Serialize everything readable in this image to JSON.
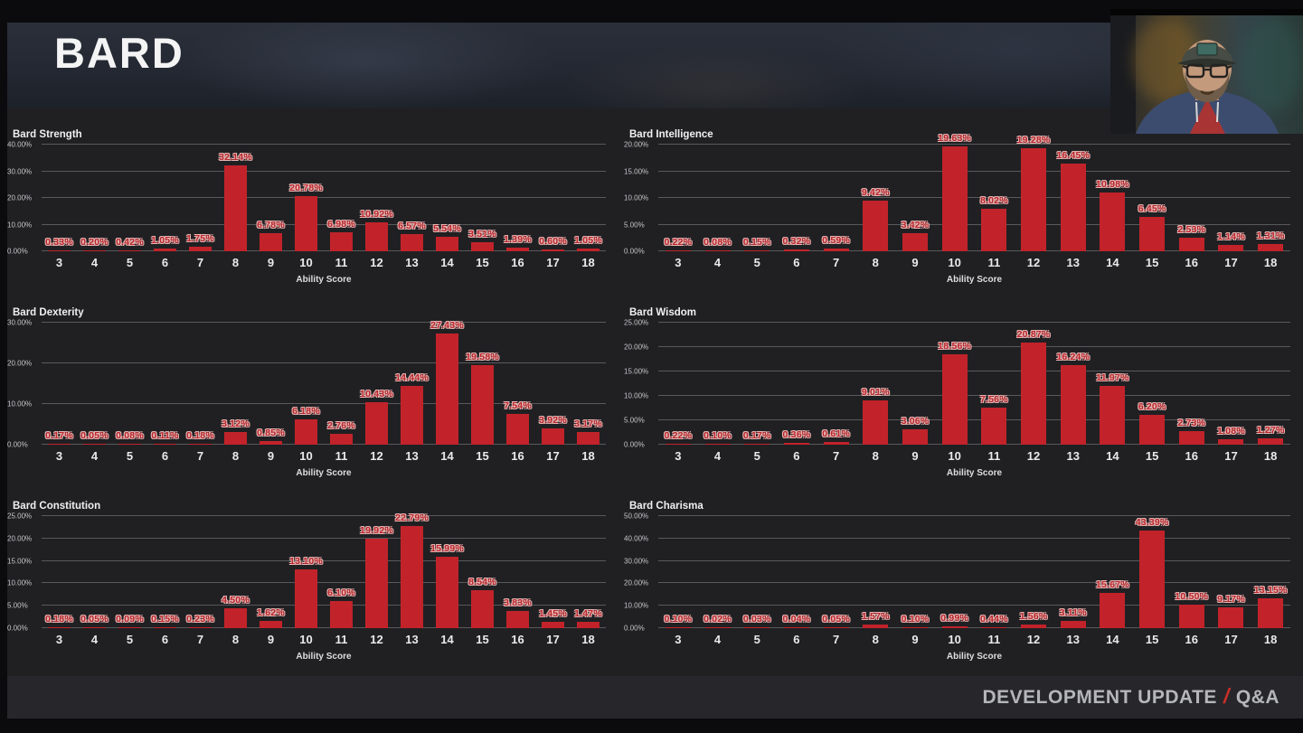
{
  "header": {
    "title": "BARD"
  },
  "footer": {
    "left": "DEVELOPMENT UPDATE",
    "separator": "/",
    "right": "Q&A"
  },
  "webcam": {
    "name": "streamer-webcam-video"
  },
  "colors": {
    "bar": "#c2232a",
    "value_label": "#b8262c",
    "value_label_outline": "#e8b7b5",
    "grid_line": "#59595c",
    "axis_label": "#c6c6c9",
    "tick_label": "#eaeaea",
    "title_text": "#f0f0f0",
    "accent_red": "#cb2e28",
    "footer_text": "#b5b6bc",
    "background": "#202023"
  },
  "chart_data": [
    {
      "type": "bar",
      "title": "Bard Strength",
      "xlabel": "Ability Score",
      "categories": [
        3,
        4,
        5,
        6,
        7,
        8,
        9,
        10,
        11,
        12,
        13,
        14,
        15,
        16,
        17,
        18
      ],
      "values": [
        0.33,
        0.2,
        0.42,
        1.05,
        1.75,
        32.14,
        6.78,
        20.78,
        6.98,
        10.92,
        6.57,
        5.54,
        3.51,
        1.39,
        0.6,
        1.05
      ],
      "ylim": [
        0,
        40
      ],
      "yticks": [
        0,
        10,
        20,
        30,
        40
      ],
      "grid": true,
      "value_label_format": "percent2"
    },
    {
      "type": "bar",
      "title": "Bard Intelligence",
      "xlabel": "Ability Score",
      "categories": [
        3,
        4,
        5,
        6,
        7,
        8,
        9,
        10,
        11,
        12,
        13,
        14,
        15,
        16,
        17,
        18
      ],
      "values": [
        0.22,
        0.08,
        0.15,
        0.32,
        0.59,
        9.42,
        3.42,
        19.63,
        8.02,
        19.28,
        16.45,
        10.98,
        6.45,
        2.53,
        1.14,
        1.31
      ],
      "ylim": [
        0,
        20
      ],
      "yticks": [
        0,
        5,
        10,
        15,
        20
      ],
      "grid": true,
      "value_label_format": "percent2"
    },
    {
      "type": "bar",
      "title": "Bard Dexterity",
      "xlabel": "Ability Score",
      "categories": [
        3,
        4,
        5,
        6,
        7,
        8,
        9,
        10,
        11,
        12,
        13,
        14,
        15,
        16,
        17,
        18
      ],
      "values": [
        0.17,
        0.05,
        0.08,
        0.11,
        0.18,
        3.12,
        0.85,
        6.18,
        2.76,
        10.43,
        14.44,
        27.43,
        19.58,
        7.54,
        3.92,
        3.17
      ],
      "ylim": [
        0,
        30
      ],
      "yticks": [
        0,
        10,
        20,
        30
      ],
      "grid": true,
      "value_label_format": "percent2"
    },
    {
      "type": "bar",
      "title": "Bard Wisdom",
      "xlabel": "Ability Score",
      "categories": [
        3,
        4,
        5,
        6,
        7,
        8,
        9,
        10,
        11,
        12,
        13,
        14,
        15,
        16,
        17,
        18
      ],
      "values": [
        0.22,
        0.1,
        0.17,
        0.36,
        0.61,
        9.01,
        3.06,
        18.56,
        7.56,
        20.87,
        16.24,
        11.97,
        6.2,
        2.73,
        1.08,
        1.27
      ],
      "ylim": [
        0,
        25
      ],
      "yticks": [
        0,
        5,
        10,
        15,
        20,
        25
      ],
      "grid": true,
      "value_label_format": "percent2"
    },
    {
      "type": "bar",
      "title": "Bard Constitution",
      "xlabel": "Ability Score",
      "categories": [
        3,
        4,
        5,
        6,
        7,
        8,
        9,
        10,
        11,
        12,
        13,
        14,
        15,
        16,
        17,
        18
      ],
      "values": [
        0.18,
        0.05,
        0.09,
        0.15,
        0.23,
        4.5,
        1.62,
        13.1,
        6.1,
        19.92,
        22.79,
        15.99,
        8.54,
        3.83,
        1.45,
        1.47
      ],
      "ylim": [
        0,
        25
      ],
      "yticks": [
        0,
        5,
        10,
        15,
        20,
        25
      ],
      "grid": true,
      "value_label_format": "percent2"
    },
    {
      "type": "bar",
      "title": "Bard Charisma",
      "xlabel": "Ability Score",
      "categories": [
        3,
        4,
        5,
        6,
        7,
        8,
        9,
        10,
        11,
        12,
        13,
        14,
        15,
        16,
        17,
        18
      ],
      "values": [
        0.1,
        0.02,
        0.03,
        0.04,
        0.05,
        1.57,
        0.1,
        0.99,
        0.44,
        1.56,
        3.11,
        15.67,
        43.39,
        10.5,
        9.17,
        13.15
      ],
      "ylim": [
        0,
        50
      ],
      "yticks": [
        0,
        10,
        20,
        30,
        40,
        50
      ],
      "grid": true,
      "value_label_format": "percent2"
    }
  ]
}
